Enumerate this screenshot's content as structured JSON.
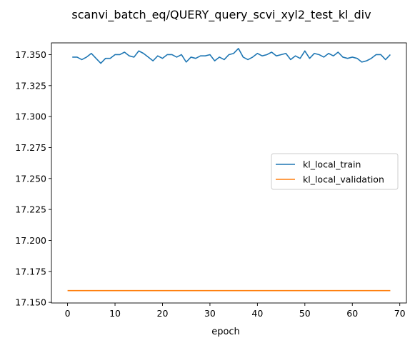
{
  "chart_data": {
    "type": "line",
    "title": "scanvi_batch_eq/QUERY_query_scvi_xyl2_test_kl_div",
    "xlabel": "epoch",
    "ylabel": "",
    "xlim": [
      -3.4,
      71.4
    ],
    "ylim": [
      17.1495,
      17.3595
    ],
    "xticks": [
      0,
      10,
      20,
      30,
      40,
      50,
      60,
      70
    ],
    "yticks": [
      17.15,
      17.175,
      17.2,
      17.225,
      17.25,
      17.275,
      17.3,
      17.325,
      17.35
    ],
    "ytick_labels": [
      "17.150",
      "17.175",
      "17.200",
      "17.225",
      "17.250",
      "17.275",
      "17.300",
      "17.325",
      "17.350"
    ],
    "grid": false,
    "legend_position": "center-right",
    "series": [
      {
        "name": "kl_local_train",
        "color": "#1f77b4",
        "x": [
          1,
          2,
          3,
          4,
          5,
          6,
          7,
          8,
          9,
          10,
          11,
          12,
          13,
          14,
          15,
          16,
          17,
          18,
          19,
          20,
          21,
          22,
          23,
          24,
          25,
          26,
          27,
          28,
          29,
          30,
          31,
          32,
          33,
          34,
          35,
          36,
          37,
          38,
          39,
          40,
          41,
          42,
          43,
          44,
          45,
          46,
          47,
          48,
          49,
          50,
          51,
          52,
          53,
          54,
          55,
          56,
          57,
          58,
          59,
          60,
          61,
          62,
          63,
          64,
          65,
          66,
          67,
          68
        ],
        "values": [
          17.348,
          17.348,
          17.346,
          17.348,
          17.351,
          17.347,
          17.343,
          17.347,
          17.347,
          17.35,
          17.35,
          17.352,
          17.349,
          17.348,
          17.353,
          17.351,
          17.348,
          17.345,
          17.349,
          17.347,
          17.35,
          17.35,
          17.348,
          17.35,
          17.344,
          17.348,
          17.347,
          17.349,
          17.349,
          17.35,
          17.345,
          17.348,
          17.346,
          17.35,
          17.351,
          17.355,
          17.348,
          17.346,
          17.348,
          17.351,
          17.349,
          17.35,
          17.352,
          17.349,
          17.35,
          17.351,
          17.346,
          17.349,
          17.347,
          17.353,
          17.347,
          17.351,
          17.35,
          17.348,
          17.351,
          17.349,
          17.352,
          17.348,
          17.347,
          17.348,
          17.347,
          17.344,
          17.345,
          17.347,
          17.35,
          17.35,
          17.346,
          17.35
        ]
      },
      {
        "name": "kl_local_validation",
        "color": "#ff7f0e",
        "x": [
          0,
          68
        ],
        "values": [
          17.1595,
          17.1595
        ]
      }
    ]
  }
}
